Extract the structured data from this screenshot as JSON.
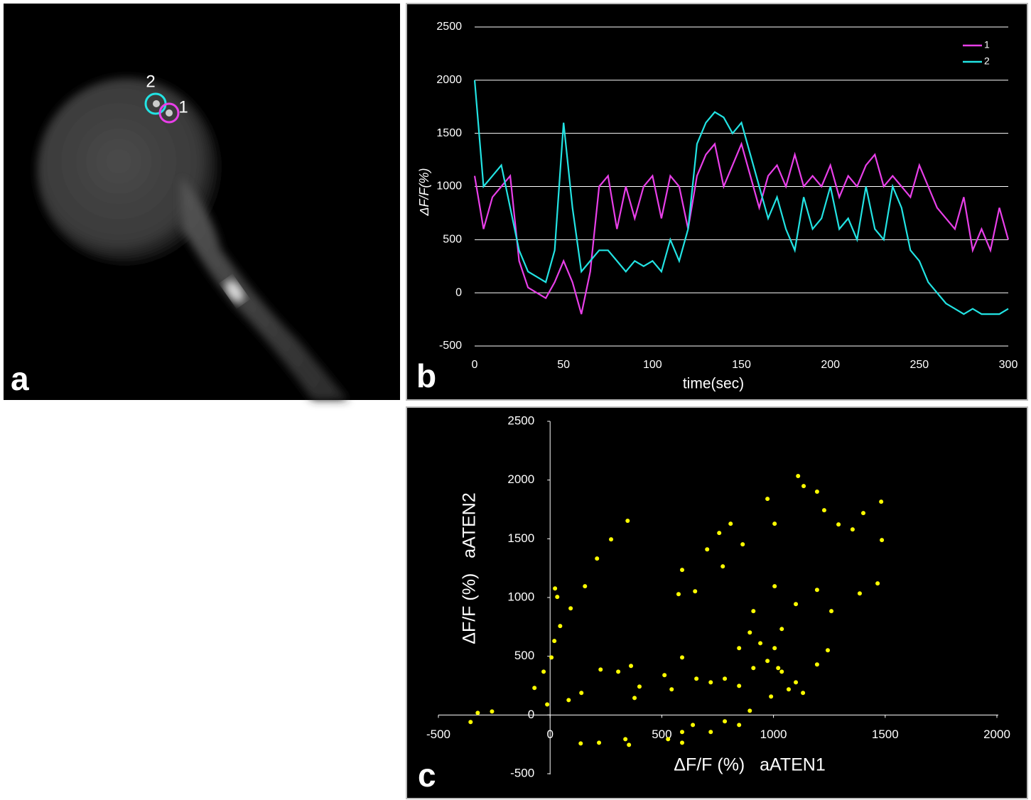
{
  "image": {
    "panel_label": "a",
    "roi_labels": [
      "2",
      "1"
    ]
  },
  "chart_data": [
    {
      "type": "line",
      "panel_label": "b",
      "x_label": "time(sec)",
      "y_label": "ΔF/F(%)",
      "x": [
        0,
        5,
        10,
        15,
        20,
        25,
        30,
        35,
        40,
        45,
        50,
        55,
        60,
        65,
        70,
        75,
        80,
        85,
        90,
        95,
        100,
        105,
        110,
        115,
        120,
        125,
        130,
        135,
        140,
        145,
        150,
        155,
        160,
        165,
        170,
        175,
        180,
        185,
        190,
        195,
        200,
        205,
        210,
        215,
        220,
        225,
        230,
        235,
        240,
        245,
        250,
        255,
        260,
        265,
        270,
        275,
        280,
        285,
        290,
        295,
        300
      ],
      "series": [
        {
          "name": "1",
          "color": "#e83fe8",
          "values": [
            1100,
            600,
            900,
            1000,
            1100,
            300,
            50,
            0,
            -50,
            100,
            300,
            100,
            -200,
            200,
            1000,
            1100,
            600,
            1000,
            700,
            1000,
            1100,
            700,
            1100,
            1000,
            600,
            1100,
            1300,
            1400,
            1000,
            1200,
            1400,
            1100,
            800,
            1100,
            1200,
            1000,
            1300,
            1000,
            1100,
            1000,
            1200,
            900,
            1100,
            1000,
            1200,
            1300,
            1000,
            1100,
            1000,
            900,
            1200,
            1000,
            800,
            700,
            600,
            900,
            400,
            600,
            400,
            800,
            500
          ]
        },
        {
          "name": "2",
          "color": "#22e3e3",
          "values": [
            2000,
            1000,
            1100,
            1200,
            800,
            400,
            200,
            150,
            100,
            400,
            1600,
            800,
            200,
            300,
            400,
            400,
            300,
            200,
            300,
            250,
            300,
            200,
            500,
            300,
            600,
            1400,
            1600,
            1700,
            1650,
            1500,
            1600,
            1300,
            1000,
            700,
            900,
            600,
            400,
            900,
            600,
            700,
            1000,
            600,
            700,
            500,
            1000,
            600,
            500,
            1000,
            800,
            400,
            300,
            100,
            0,
            -100,
            -150,
            -200,
            -150,
            -200,
            -200,
            -200,
            -150
          ]
        }
      ],
      "xlim": [
        0,
        300
      ],
      "xticks": [
        0,
        50,
        100,
        150,
        200,
        250,
        300
      ],
      "ylim": [
        -500,
        2500
      ],
      "yticks": [
        -500,
        0,
        500,
        1000,
        1500,
        2000,
        2500
      ],
      "grid": true,
      "legend": "upper right"
    },
    {
      "type": "scatter",
      "panel_label": "c",
      "x_label": "ΔF/F (%)   aATEN1",
      "y_label": "ΔF/F (%)   aATEN2",
      "color": "#ffff00",
      "x": [
        -356,
        -324,
        -260,
        -13,
        6,
        22,
        32,
        45,
        92,
        347,
        273,
        210,
        156,
        19,
        -29,
        -70,
        83,
        140,
        226,
        305,
        362,
        400,
        378,
        219,
        137,
        337,
        353,
        528,
        591,
        591,
        575,
        649,
        703,
        757,
        808,
        773,
        862,
        973,
        1005,
        1110,
        1135,
        1195,
        1227,
        1291,
        1354,
        1402,
        1482,
        1485,
        1466,
        1386,
        1259,
        1195,
        1100,
        1037,
        1005,
        910,
        894,
        846,
        782,
        846,
        910,
        973,
        1037,
        1100,
        1195,
        1243,
        719,
        655,
        591,
        544,
        512,
        719,
        782,
        846,
        894,
        639,
        591,
        989,
        1068,
        1132,
        941,
        1021,
        1005
      ],
      "y": [
        -60,
        18,
        30,
        90,
        490,
        1077,
        1005,
        757,
        908,
        1653,
        1495,
        1332,
        1096,
        630,
        369,
        230,
        127,
        188,
        387,
        369,
        418,
        242,
        145,
        -236,
        -242,
        -206,
        -254,
        -206,
        -236,
        1235,
        1029,
        1053,
        1410,
        1550,
        1628,
        1265,
        1453,
        1840,
        1628,
        2034,
        1949,
        1901,
        1743,
        1622,
        1580,
        1719,
        1816,
        1489,
        1120,
        1035,
        884,
        1065,
        944,
        732,
        1096,
        884,
        702,
        569,
        309,
        248,
        400,
        460,
        369,
        278,
        430,
        551,
        278,
        309,
        490,
        218,
        339,
        -145,
        -54,
        -85,
        36,
        -85,
        -145,
        157,
        218,
        188,
        611,
        400,
        569
      ],
      "xlim": [
        -500,
        2000
      ],
      "xticks": [
        -500,
        0,
        500,
        1000,
        1500,
        2000
      ],
      "ylim": [
        -500,
        2500
      ],
      "yticks": [
        -500,
        0,
        500,
        1000,
        1500,
        2000,
        2500
      ]
    }
  ]
}
